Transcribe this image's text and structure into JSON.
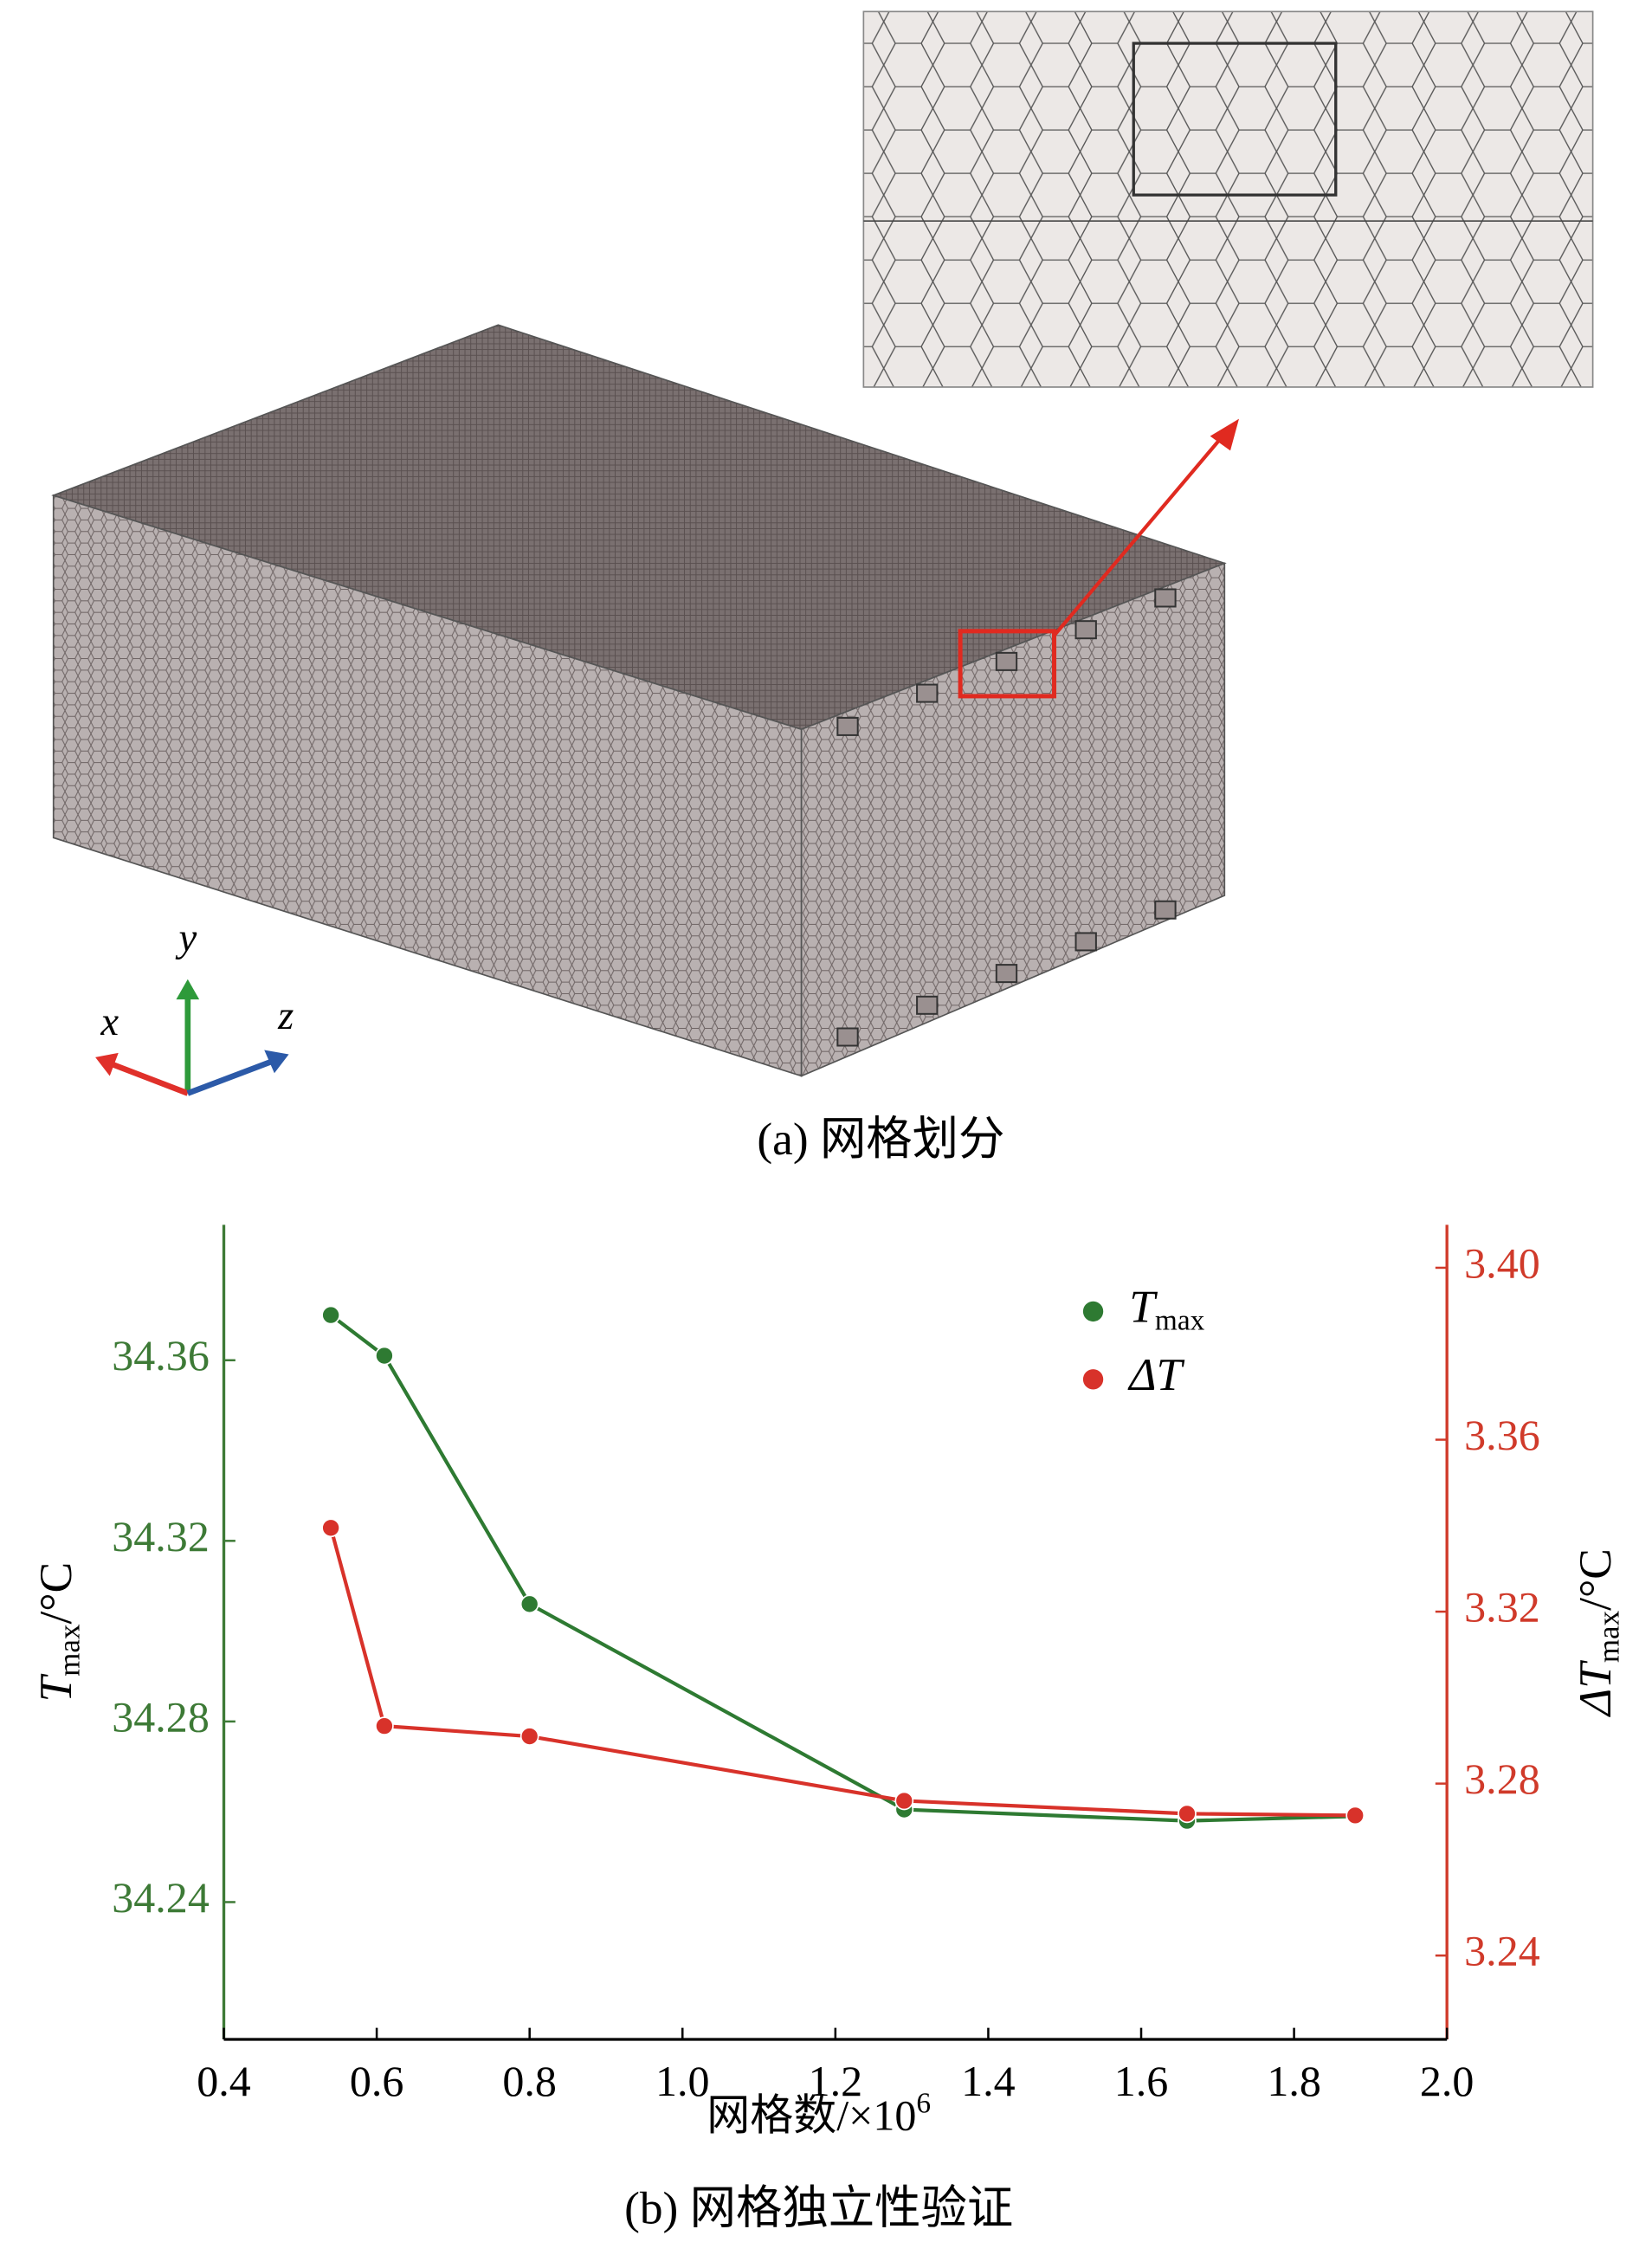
{
  "figure_a": {
    "caption": "(a) 网格划分",
    "axis_x": "x",
    "axis_y": "y",
    "axis_z": "z"
  },
  "chart_data": {
    "type": "line",
    "caption": "(b) 网格独立性验证",
    "xlabel": {
      "text": "网格数/×10",
      "sup": "6"
    },
    "ylabel": {
      "text": "T",
      "sub": "max",
      "unit": "/°C"
    },
    "y2label": {
      "text": "ΔT",
      "sub": "max",
      "unit": "/°C"
    },
    "x": [
      0.54,
      0.61,
      0.8,
      1.29,
      1.66,
      1.88
    ],
    "series": [
      {
        "name": "T",
        "name_sub": "max",
        "color": "#2e7a32",
        "values": [
          34.37,
          34.361,
          34.306,
          34.2605,
          34.258,
          34.259
        ]
      },
      {
        "name": "ΔT",
        "color": "#d8322a",
        "axis": "y2",
        "values": [
          3.3395,
          3.2934,
          3.291,
          3.276,
          3.273,
          3.2726
        ]
      }
    ],
    "xlim": [
      0.4,
      2.0
    ],
    "xticks": [
      0.4,
      0.6,
      0.8,
      {
        "value": 1,
        "label": "1.0"
      },
      1.2,
      1.4,
      1.6,
      1.8,
      {
        "value": 2,
        "label": "2.0"
      }
    ],
    "ylim": [
      34.2096,
      34.39
    ],
    "yticks": [
      34.24,
      34.28,
      34.32,
      34.36
    ],
    "y2lim": [
      3.2205,
      3.41
    ],
    "y2ticks": [
      {
        "value": 3.24,
        "label": "3.24"
      },
      3.28,
      3.32,
      3.36,
      {
        "value": 3.4,
        "label": "3.40"
      }
    ],
    "left_axis_color": "#3d7a36",
    "right_axis_color": "#d03a2a",
    "legend": "upper right"
  }
}
